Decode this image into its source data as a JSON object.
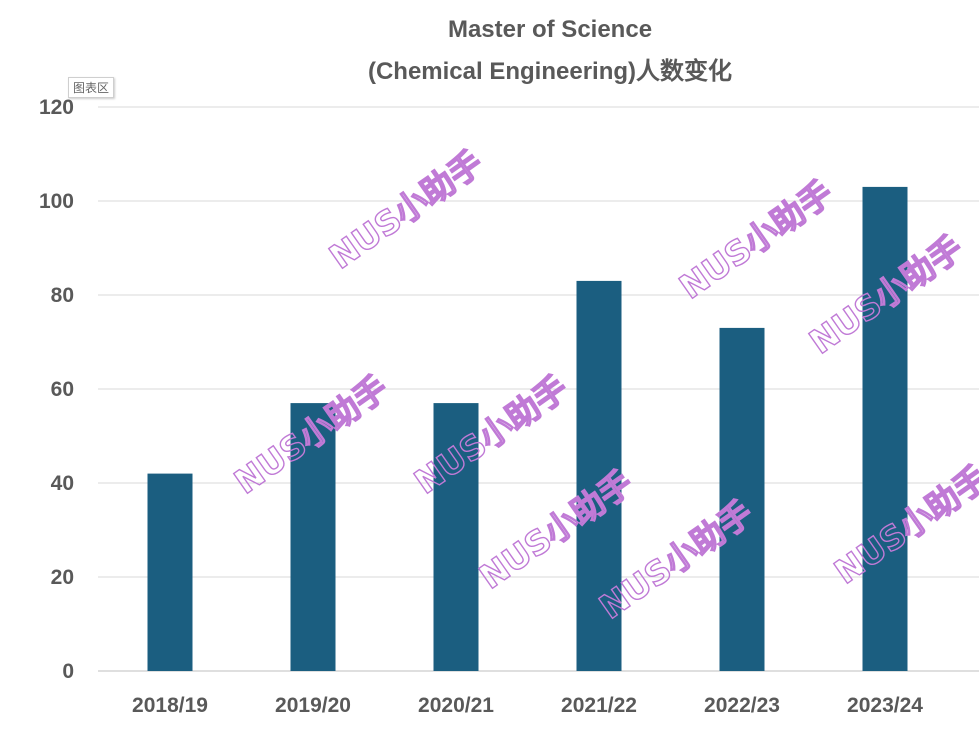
{
  "chart_data": {
    "type": "bar",
    "title_line1": "Master of Science",
    "title_line2": "(Chemical Engineering)人数变化",
    "categories": [
      "2018/19",
      "2019/20",
      "2020/21",
      "2021/22",
      "2022/23",
      "2023/24"
    ],
    "values": [
      42,
      57,
      57,
      83,
      73,
      103
    ],
    "yticks": [
      "0",
      "20",
      "40",
      "60",
      "80",
      "100",
      "120"
    ],
    "ylim": [
      0,
      120
    ],
    "xlabel": "",
    "ylabel": "",
    "grid": true,
    "bar_color": "#1b5e80"
  },
  "chart_area_label": "图表区",
  "watermark": {
    "text": "NUS小助手",
    "color": "#c07ad6"
  }
}
